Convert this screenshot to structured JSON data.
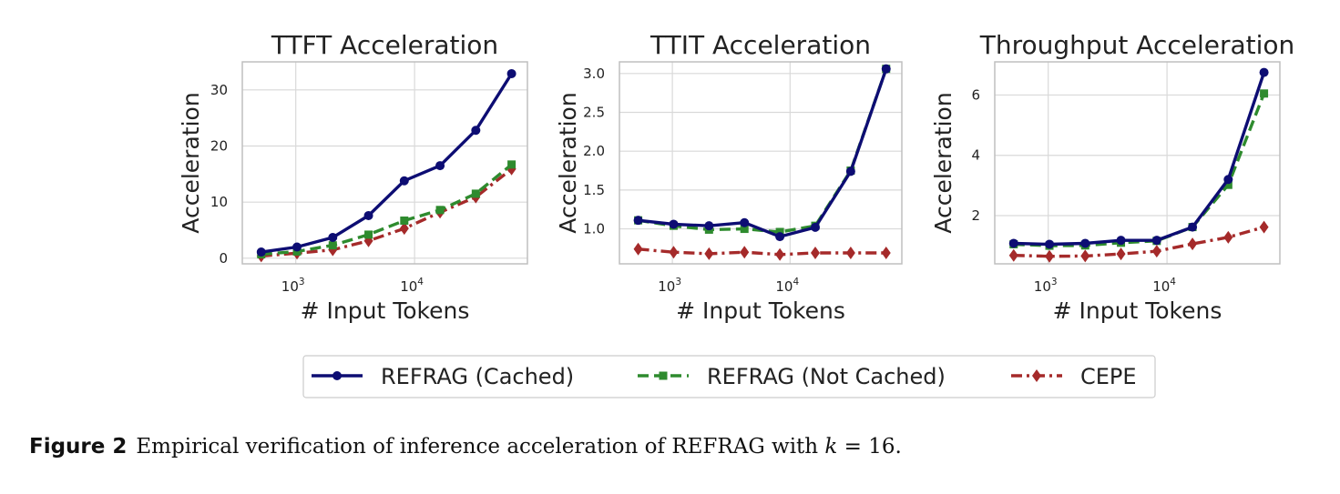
{
  "caption": {
    "label": "Figure 2",
    "text_before": "Empirical verification of inference acceleration of REFRAG with ",
    "math_var": "k",
    "text_after": " = 16."
  },
  "colors": {
    "refrag_cached": "#0d0d73",
    "refrag_not_cached": "#2e8b2e",
    "cepe": "#a52a2a",
    "grid": "#d9d9d9",
    "axes_border": "#bfbfbf"
  },
  "legend": {
    "placement": "bottom-center",
    "entries": [
      "REFRAG (Cached)",
      "REFRAG (Not Cached)",
      "CEPE"
    ]
  },
  "chart_data": [
    {
      "type": "line",
      "title": "TTFT Acceleration",
      "xlabel": "# Input Tokens",
      "ylabel": "Acceleration",
      "xscale": "log",
      "x": [
        512,
        1024,
        2048,
        4096,
        8192,
        16384,
        32768,
        65536
      ],
      "xticks": [
        {
          "value": 1000,
          "base": "10",
          "exp": "3"
        },
        {
          "value": 10000,
          "base": "10",
          "exp": "4"
        }
      ],
      "yticks": [
        0,
        10,
        20,
        30
      ],
      "ylim": [
        -1,
        35
      ],
      "grid": true,
      "series": [
        {
          "name": "REFRAG (Cached)",
          "marker": "circle",
          "linestyle": "solid",
          "values": [
            1.1,
            2.0,
            3.7,
            7.6,
            13.8,
            16.5,
            22.8,
            32.9
          ]
        },
        {
          "name": "REFRAG (Not Cached)",
          "marker": "square",
          "linestyle": "dashed",
          "values": [
            0.7,
            1.2,
            2.3,
            4.2,
            6.7,
            8.6,
            11.5,
            16.7
          ]
        },
        {
          "name": "CEPE",
          "marker": "diamond",
          "linestyle": "dashdot",
          "values": [
            0.4,
            0.9,
            1.5,
            3.1,
            5.3,
            8.2,
            10.9,
            15.9
          ]
        }
      ]
    },
    {
      "type": "line",
      "title": "TTIT Acceleration",
      "xlabel": "# Input Tokens",
      "ylabel": "Acceleration",
      "xscale": "log",
      "x": [
        512,
        1024,
        2048,
        4096,
        8192,
        16384,
        32768,
        65536
      ],
      "xticks": [
        {
          "value": 1000,
          "base": "10",
          "exp": "3"
        },
        {
          "value": 10000,
          "base": "10",
          "exp": "4"
        }
      ],
      "yticks": [
        "1.0",
        "1.5",
        "2.0",
        "2.5",
        "3.0"
      ],
      "ylim": [
        0.55,
        3.15
      ],
      "grid": true,
      "series": [
        {
          "name": "REFRAG (Cached)",
          "marker": "circle",
          "linestyle": "solid",
          "values": [
            1.11,
            1.06,
            1.04,
            1.08,
            0.9,
            1.02,
            1.74,
            3.06
          ]
        },
        {
          "name": "REFRAG (Not Cached)",
          "marker": "square",
          "linestyle": "dashed",
          "values": [
            1.11,
            1.04,
            0.99,
            1.0,
            0.96,
            1.04,
            1.75,
            3.06
          ]
        },
        {
          "name": "CEPE",
          "marker": "diamond",
          "linestyle": "dashdot",
          "values": [
            0.74,
            0.7,
            0.68,
            0.7,
            0.67,
            0.69,
            0.69,
            0.69
          ]
        }
      ]
    },
    {
      "type": "line",
      "title": "Throughput Acceleration",
      "xlabel": "# Input Tokens",
      "ylabel": "Acceleration",
      "xscale": "log",
      "x": [
        512,
        1024,
        2048,
        4096,
        8192,
        16384,
        32768,
        65536
      ],
      "xticks": [
        {
          "value": 1000,
          "base": "10",
          "exp": "3"
        },
        {
          "value": 10000,
          "base": "10",
          "exp": "4"
        }
      ],
      "yticks": [
        2,
        4,
        6
      ],
      "ylim": [
        0.4,
        7.1
      ],
      "grid": true,
      "series": [
        {
          "name": "REFRAG (Cached)",
          "marker": "circle",
          "linestyle": "solid",
          "values": [
            1.08,
            1.05,
            1.08,
            1.18,
            1.18,
            1.62,
            3.2,
            6.75
          ]
        },
        {
          "name": "REFRAG (Not Cached)",
          "marker": "square",
          "linestyle": "dashed",
          "values": [
            1.05,
            1.0,
            1.01,
            1.1,
            1.16,
            1.62,
            3.02,
            6.05
          ]
        },
        {
          "name": "CEPE",
          "marker": "diamond",
          "linestyle": "dashdot",
          "values": [
            0.68,
            0.65,
            0.66,
            0.73,
            0.82,
            1.06,
            1.28,
            1.62
          ]
        }
      ]
    }
  ]
}
